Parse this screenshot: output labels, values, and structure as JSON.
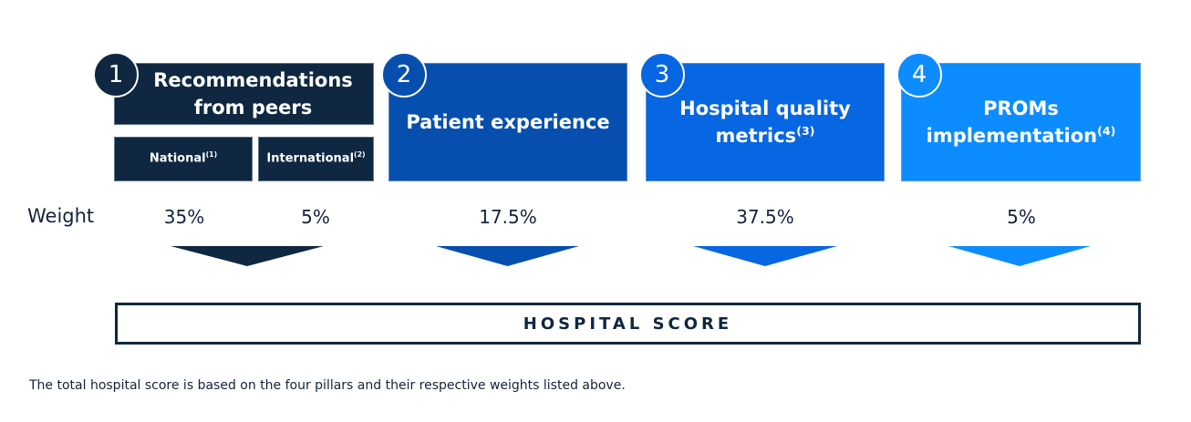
{
  "pillars": [
    {
      "number": "1",
      "title": "Recommendations from peers",
      "color": "#0f2740",
      "sub": [
        {
          "label": "National",
          "note": "(1)",
          "weight": "35%"
        },
        {
          "label": "International",
          "note": "(2)",
          "weight": "5%"
        }
      ]
    },
    {
      "number": "2",
      "title": "Patient experience",
      "note": "",
      "weight": "17.5%",
      "color": "#064fae"
    },
    {
      "number": "3",
      "title": "Hospital quality metrics",
      "note": "(3)",
      "weight": "37.5%",
      "color": "#0766e1"
    },
    {
      "number": "4",
      "title": "PROMs implementation",
      "note": "(4)",
      "weight": "5%",
      "color": "#0d8cff"
    }
  ],
  "weight_label": "Weight",
  "result_label": "HOSPITAL SCORE",
  "caption": "The total hospital score is based on the four pillars and their respective weights listed above."
}
